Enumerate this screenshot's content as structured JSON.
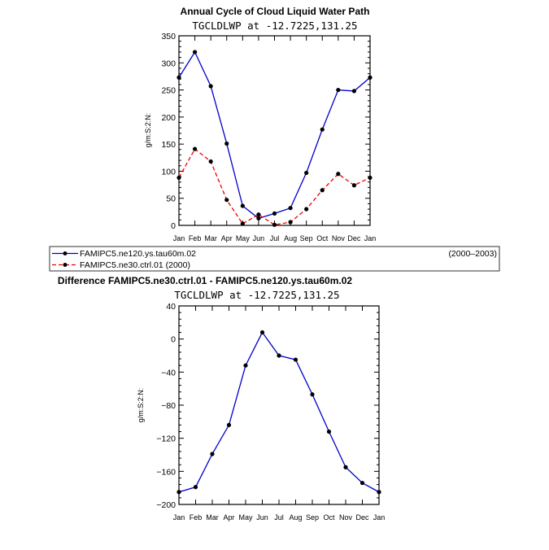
{
  "chart_data": [
    {
      "type": "line",
      "title": "Annual Cycle of Cloud Liquid Water Path",
      "subtitle": "TGCLDLWP at -12.7225,131.25",
      "xlabel": "",
      "ylabel": "g/m:S:2:N:",
      "categories": [
        "Jan",
        "Feb",
        "Mar",
        "Apr",
        "May",
        "Jun",
        "Jul",
        "Aug",
        "Sep",
        "Oct",
        "Nov",
        "Dec",
        "Jan"
      ],
      "ylim": [
        0,
        350
      ],
      "yticks": [
        0,
        50,
        100,
        150,
        200,
        250,
        300,
        350
      ],
      "series": [
        {
          "name": "FAMIPC5.ne120.ys.tau60m.02",
          "period": "(2000–2003)",
          "color": "#0000cc",
          "dash": "solid",
          "values": [
            273,
            320,
            257,
            151,
            36,
            13,
            22,
            32,
            97,
            177,
            250,
            248,
            273
          ]
        },
        {
          "name": "FAMIPC5.ne30.ctrl.01 (2000)",
          "period": "",
          "color": "#ee0000",
          "dash": "dashed",
          "values": [
            88,
            141,
            118,
            47,
            3,
            20,
            1,
            6,
            30,
            65,
            95,
            74,
            88
          ]
        }
      ]
    },
    {
      "type": "line",
      "title": "Difference FAMIPC5.ne30.ctrl.01 - FAMIPC5.ne120.ys.tau60m.02",
      "subtitle": "TGCLDLWP at -12.7225,131.25",
      "xlabel": "",
      "ylabel": "g/m:S:2:N:",
      "categories": [
        "Jan",
        "Feb",
        "Mar",
        "Apr",
        "May",
        "Jun",
        "Jul",
        "Aug",
        "Sep",
        "Oct",
        "Nov",
        "Dec",
        "Jan"
      ],
      "ylim": [
        -200,
        40
      ],
      "yticks": [
        -200,
        -160,
        -120,
        -80,
        -40,
        0,
        40
      ],
      "series": [
        {
          "name": "Difference",
          "color": "#0000cc",
          "dash": "solid",
          "values": [
            -185,
            -179,
            -139,
            -104,
            -32,
            8,
            -20,
            -25,
            -67,
            -112,
            -155,
            -174,
            -185
          ]
        }
      ]
    }
  ]
}
